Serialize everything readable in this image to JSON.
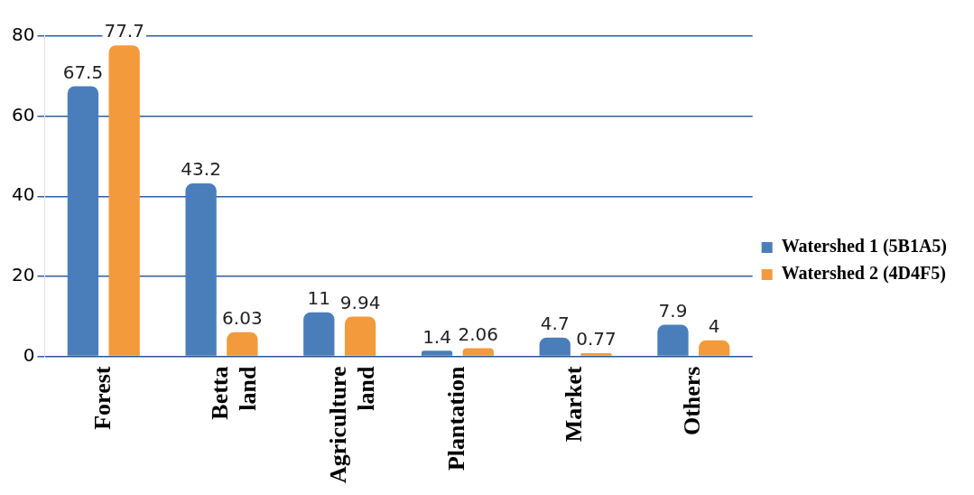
{
  "chart_data": {
    "type": "bar",
    "categories": [
      "Forest",
      "Betta land",
      "Agriculture land",
      "Plantation",
      "Market",
      "Others"
    ],
    "series": [
      {
        "name": "Watershed 1 (5B1A5)",
        "color": "#4a7ebb",
        "values": [
          67.5,
          43.2,
          11,
          1.4,
          4.7,
          7.9
        ]
      },
      {
        "name": "Watershed 2 (4D4F5)",
        "color": "#f39a3c",
        "values": [
          77.7,
          6.03,
          9.94,
          2.06,
          0.77,
          4
        ]
      }
    ],
    "ylim": [
      0,
      80
    ],
    "yticks": [
      0,
      20,
      40,
      60,
      80
    ],
    "grid": "y",
    "legend": "right",
    "data_labels": true
  }
}
